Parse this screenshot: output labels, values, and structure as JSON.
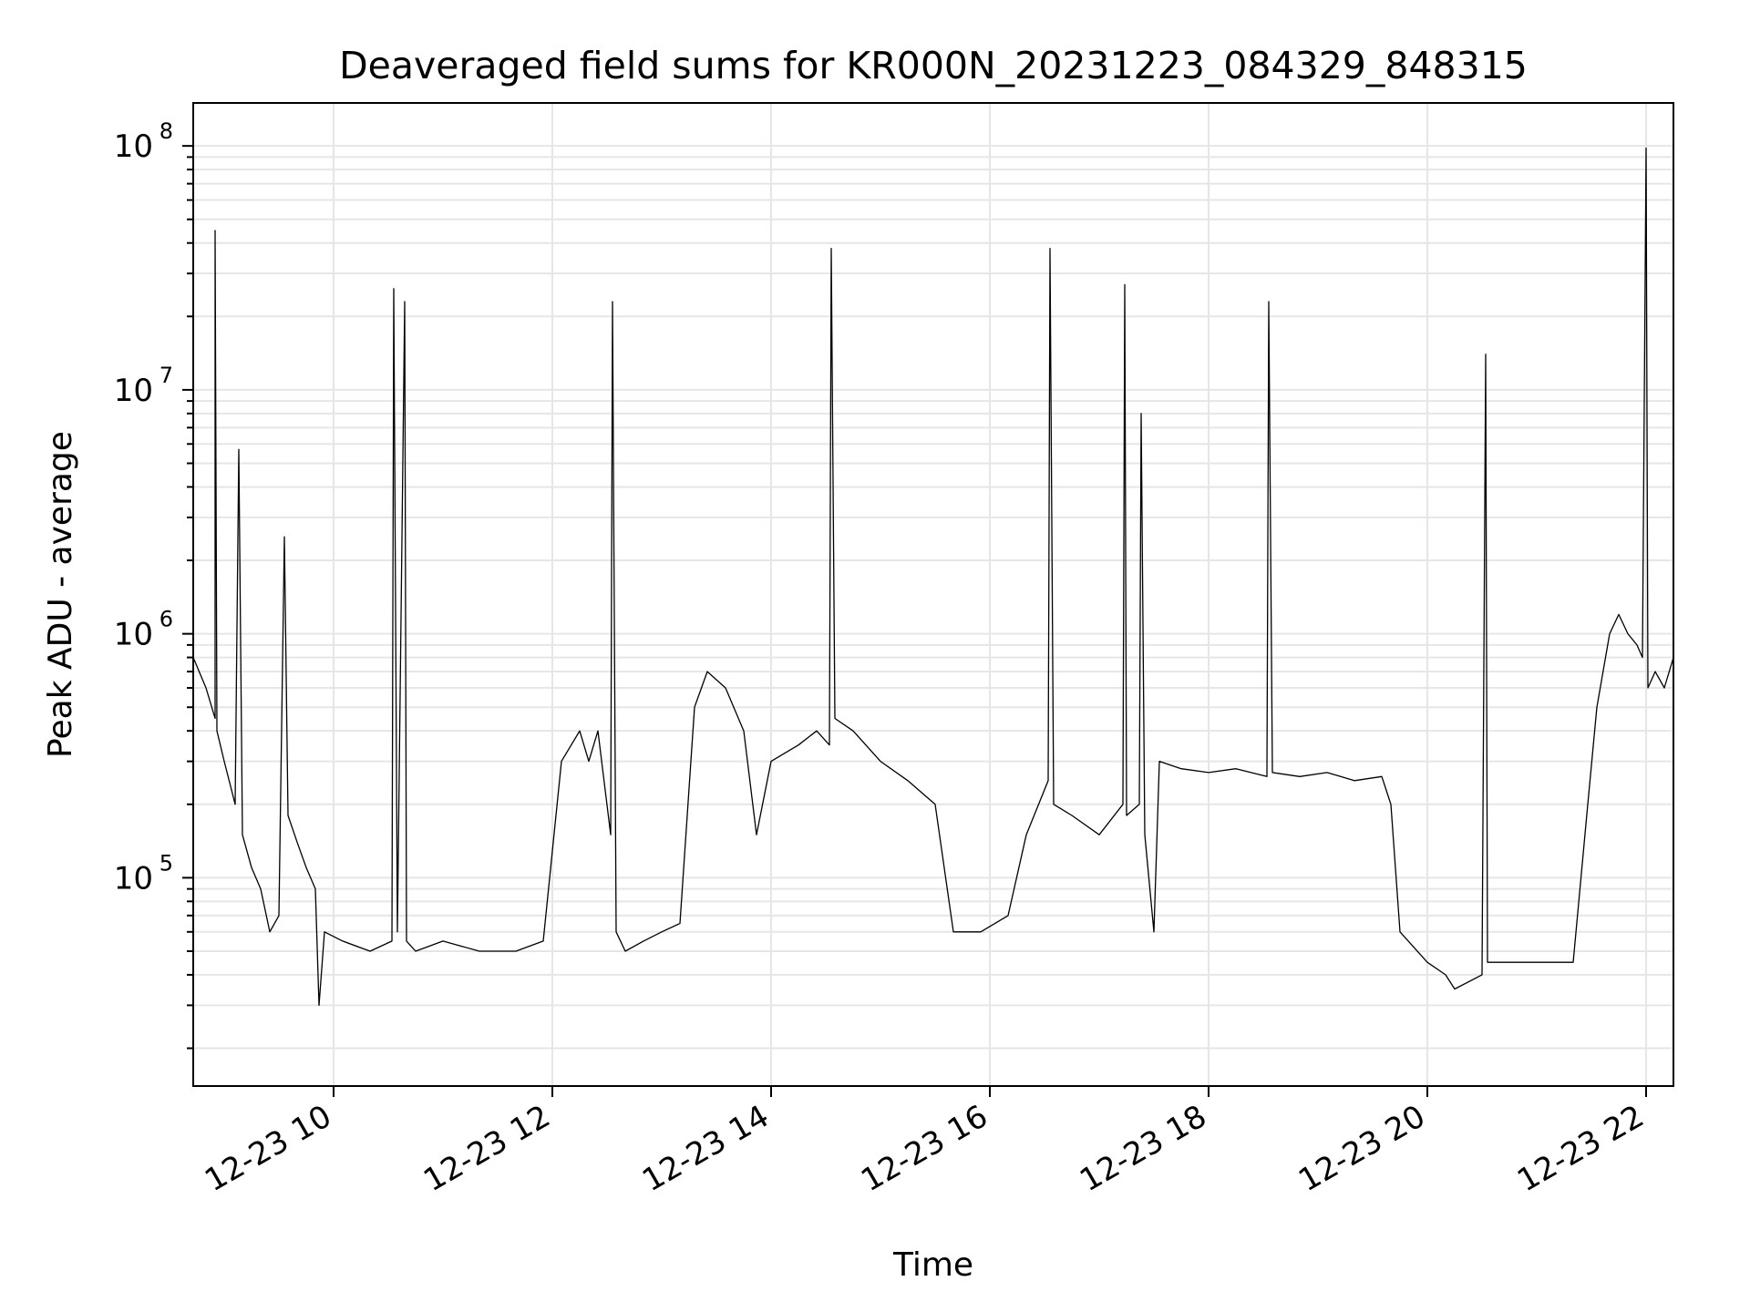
{
  "chart_data": {
    "type": "line",
    "title": "Deaveraged field sums for KR000N_20231223_084329_848315",
    "xlabel": "Time",
    "ylabel": "Peak ADU - average",
    "yscale": "log",
    "grid": true,
    "grid_which": "both",
    "line_color": "#000000",
    "grid_color": "#e6e6e6",
    "xlim": [
      "2023-12-23 08:43",
      "2023-12-23 22:15"
    ],
    "ylim": [
      14000,
      150000000
    ],
    "x_ticks": [
      {
        "value": "2023-12-23 10:00",
        "label": "12-23 10"
      },
      {
        "value": "2023-12-23 12:00",
        "label": "12-23 12"
      },
      {
        "value": "2023-12-23 14:00",
        "label": "12-23 14"
      },
      {
        "value": "2023-12-23 16:00",
        "label": "12-23 16"
      },
      {
        "value": "2023-12-23 18:00",
        "label": "12-23 18"
      },
      {
        "value": "2023-12-23 20:00",
        "label": "12-23 20"
      },
      {
        "value": "2023-12-23 22:00",
        "label": "12-23 22"
      }
    ],
    "y_ticks": [
      {
        "value": 100000,
        "base": "10",
        "exp": "5"
      },
      {
        "value": 1000000,
        "base": "10",
        "exp": "6"
      },
      {
        "value": 10000000,
        "base": "10",
        "exp": "7"
      },
      {
        "value": 100000000,
        "base": "10",
        "exp": "8"
      }
    ],
    "series": [
      {
        "x": [
          "2023-12-23 08:43",
          "2023-12-23 08:50",
          "2023-12-23 08:55",
          "2023-12-23 08:55",
          "2023-12-23 08:56",
          "2023-12-23 09:00",
          "2023-12-23 09:06",
          "2023-12-23 09:08",
          "2023-12-23 09:10",
          "2023-12-23 09:15",
          "2023-12-23 09:20",
          "2023-12-23 09:25",
          "2023-12-23 09:30",
          "2023-12-23 09:33",
          "2023-12-23 09:35",
          "2023-12-23 09:40",
          "2023-12-23 09:45",
          "2023-12-23 09:50",
          "2023-12-23 09:52",
          "2023-12-23 09:55",
          "2023-12-23 10:05",
          "2023-12-23 10:20",
          "2023-12-23 10:32",
          "2023-12-23 10:33",
          "2023-12-23 10:35",
          "2023-12-23 10:39",
          "2023-12-23 10:40",
          "2023-12-23 10:45",
          "2023-12-23 11:00",
          "2023-12-23 11:20",
          "2023-12-23 11:40",
          "2023-12-23 11:55",
          "2023-12-23 12:05",
          "2023-12-23 12:15",
          "2023-12-23 12:20",
          "2023-12-23 12:25",
          "2023-12-23 12:32",
          "2023-12-23 12:33",
          "2023-12-23 12:35",
          "2023-12-23 12:40",
          "2023-12-23 12:50",
          "2023-12-23 13:00",
          "2023-12-23 13:10",
          "2023-12-23 13:18",
          "2023-12-23 13:25",
          "2023-12-23 13:35",
          "2023-12-23 13:45",
          "2023-12-23 13:52",
          "2023-12-23 14:00",
          "2023-12-23 14:15",
          "2023-12-23 14:25",
          "2023-12-23 14:32",
          "2023-12-23 14:33",
          "2023-12-23 14:35",
          "2023-12-23 14:45",
          "2023-12-23 15:00",
          "2023-12-23 15:15",
          "2023-12-23 15:30",
          "2023-12-23 15:40",
          "2023-12-23 15:55",
          "2023-12-23 16:10",
          "2023-12-23 16:20",
          "2023-12-23 16:32",
          "2023-12-23 16:33",
          "2023-12-23 16:35",
          "2023-12-23 16:45",
          "2023-12-23 17:00",
          "2023-12-23 17:13",
          "2023-12-23 17:14",
          "2023-12-23 17:15",
          "2023-12-23 17:22",
          "2023-12-23 17:23",
          "2023-12-23 17:25",
          "2023-12-23 17:30",
          "2023-12-23 17:33",
          "2023-12-23 17:45",
          "2023-12-23 18:00",
          "2023-12-23 18:15",
          "2023-12-23 18:32",
          "2023-12-23 18:33",
          "2023-12-23 18:35",
          "2023-12-23 18:50",
          "2023-12-23 19:05",
          "2023-12-23 19:20",
          "2023-12-23 19:35",
          "2023-12-23 19:40",
          "2023-12-23 19:45",
          "2023-12-23 20:00",
          "2023-12-23 20:10",
          "2023-12-23 20:15",
          "2023-12-23 20:30",
          "2023-12-23 20:32",
          "2023-12-23 20:33",
          "2023-12-23 20:35",
          "2023-12-23 20:50",
          "2023-12-23 21:05",
          "2023-12-23 21:20",
          "2023-12-23 21:28",
          "2023-12-23 21:33",
          "2023-12-23 21:40",
          "2023-12-23 21:45",
          "2023-12-23 21:50",
          "2023-12-23 21:55",
          "2023-12-23 21:58",
          "2023-12-23 22:00",
          "2023-12-23 22:01",
          "2023-12-23 22:05",
          "2023-12-23 22:10",
          "2023-12-23 22:15"
        ],
        "y": [
          800000,
          600000,
          450000,
          45000000,
          400000,
          300000,
          200000,
          5700000,
          150000,
          110000,
          90000,
          60000,
          70000,
          2500000,
          180000,
          140000,
          110000,
          90000,
          30000,
          60000,
          55000,
          50000,
          55000,
          26000000,
          60000,
          23000000,
          55000,
          50000,
          55000,
          50000,
          50000,
          55000,
          300000,
          400000,
          300000,
          400000,
          150000,
          23000000,
          60000,
          50000,
          55000,
          60000,
          65000,
          500000,
          700000,
          600000,
          400000,
          150000,
          300000,
          350000,
          400000,
          350000,
          38000000,
          450000,
          400000,
          300000,
          250000,
          200000,
          60000,
          60000,
          70000,
          150000,
          250000,
          38000000,
          200000,
          180000,
          150000,
          200000,
          27000000,
          180000,
          200000,
          8000000,
          150000,
          60000,
          300000,
          280000,
          270000,
          280000,
          260000,
          23000000,
          270000,
          260000,
          270000,
          250000,
          260000,
          200000,
          60000,
          45000,
          40000,
          35000,
          40000,
          14000000,
          45000,
          45000,
          45000,
          45000,
          45000,
          200000,
          500000,
          1000000,
          1200000,
          1000000,
          900000,
          800000,
          98000000,
          600000,
          700000,
          600000,
          800000
        ]
      }
    ]
  }
}
